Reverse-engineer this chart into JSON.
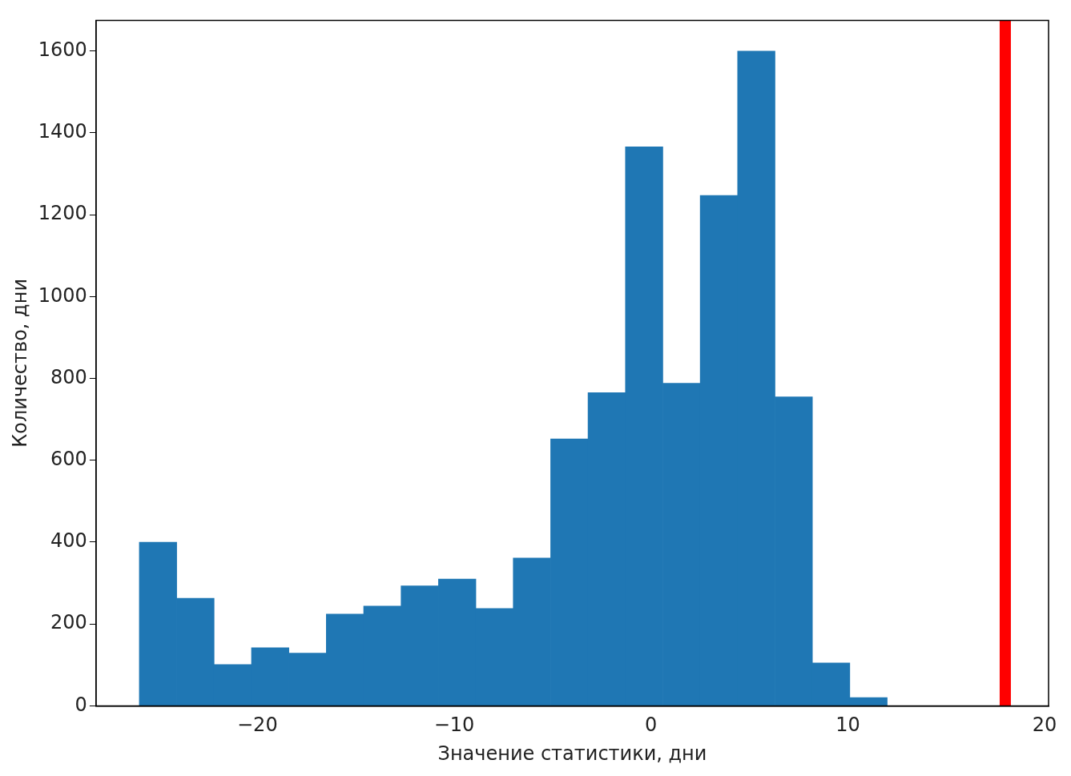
{
  "chart_data": {
    "type": "histogram",
    "xlabel": "Значение статистики, дни",
    "ylabel": "Количество, дни",
    "color": "#1f77b4",
    "bins": [
      -26,
      -24.1,
      -22.2,
      -20.3,
      -18.4,
      -16.5,
      -14.6,
      -12.7,
      -10.8,
      -8.9,
      -7,
      -5.1,
      -3.2,
      -1.3,
      0.6,
      2.5,
      4.4,
      6.3,
      8.2,
      10.1,
      12
    ],
    "values": [
      400,
      263,
      101,
      142,
      129,
      224,
      244,
      293,
      310,
      238,
      361,
      652,
      765,
      1366,
      788,
      1247,
      1600,
      755,
      105,
      20
    ],
    "xlim": [
      -28.2,
      20.2
    ],
    "xticks": [
      {
        "value": -20,
        "label": "−20"
      },
      {
        "value": -10,
        "label": "−10"
      },
      0,
      10,
      20
    ],
    "ylim": [
      0,
      1675
    ],
    "yticks": [
      0,
      200,
      400,
      600,
      800,
      1000,
      1200,
      1400,
      1600
    ],
    "ref_lines": [
      {
        "axis": "x",
        "value": 18,
        "color": "#ff0000"
      }
    ],
    "grid": false,
    "legend": false
  }
}
